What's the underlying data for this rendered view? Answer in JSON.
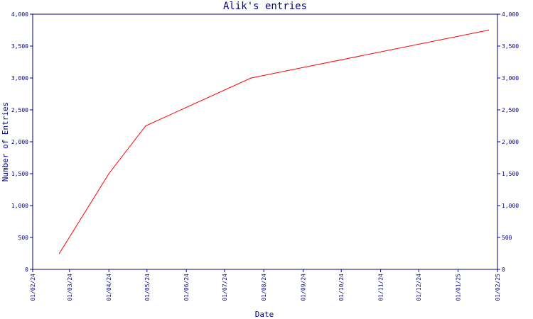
{
  "chart_data": {
    "type": "line",
    "title": "Alik's entries",
    "xlabel": "Date",
    "ylabel": "Number of Entries",
    "x_ticks": [
      "01/02/24",
      "01/03/24",
      "01/04/24",
      "01/05/24",
      "01/06/24",
      "01/07/24",
      "01/08/24",
      "01/09/24",
      "01/10/24",
      "01/11/24",
      "01/12/24",
      "01/01/25",
      "01/02/25"
    ],
    "y_ticks": [
      "0",
      "500",
      "1,000",
      "1,500",
      "2,000",
      "2,500",
      "3,000",
      "3,500",
      "4,000"
    ],
    "ylim": [
      0,
      4000
    ],
    "xlim": [
      "2024-02-01",
      "2025-02-01"
    ],
    "series": [
      {
        "color": "#ff0000",
        "x": [
          "2024-02-22",
          "2024-04-01",
          "2024-04-30",
          "2024-07-22",
          "2025-01-25"
        ],
        "y": [
          250,
          1500,
          2250,
          3000,
          3750
        ]
      }
    ],
    "right_axis_mirror": true,
    "grid": false
  },
  "colors": {
    "axis": "#000080",
    "line": "#ff0000",
    "background": "#ffffff"
  }
}
